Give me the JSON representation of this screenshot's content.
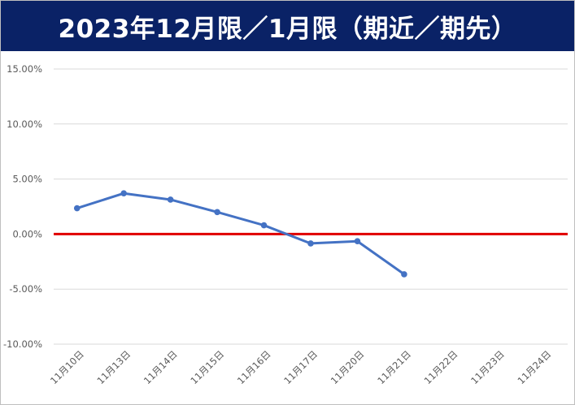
{
  "title": "2023年12月限／1月限（期近／期先）",
  "colors": {
    "title_bg": "#0a2266",
    "title_text": "#ffffff",
    "series_line": "#4472c4",
    "zero_line": "#e00000",
    "grid": "#d9d9d9",
    "tick_text": "#595959"
  },
  "chart_data": {
    "type": "line",
    "title": "2023年12月限／1月限（期近／期先）",
    "xlabel": "",
    "ylabel": "",
    "categories": [
      "11月10日",
      "11月13日",
      "11月14日",
      "11月15日",
      "11月16日",
      "11月17日",
      "11月20日",
      "11月21日",
      "11月22日",
      "11月23日",
      "11月24日"
    ],
    "ylim": [
      -0.1,
      0.15
    ],
    "yticks": [
      0.15,
      0.1,
      0.05,
      0.0,
      -0.05,
      -0.1
    ],
    "ytick_labels": [
      "15.00%",
      "10.00%",
      "5.00%",
      "0.00%",
      "-5.00%",
      "-10.00%"
    ],
    "grid": true,
    "legend": "none",
    "series": [
      {
        "values": [
          0.0235,
          0.037,
          0.0313,
          0.02,
          0.008,
          -0.0085,
          -0.0065,
          -0.0365,
          null,
          null,
          null
        ]
      }
    ],
    "reference_line": {
      "y": 0.0
    }
  }
}
